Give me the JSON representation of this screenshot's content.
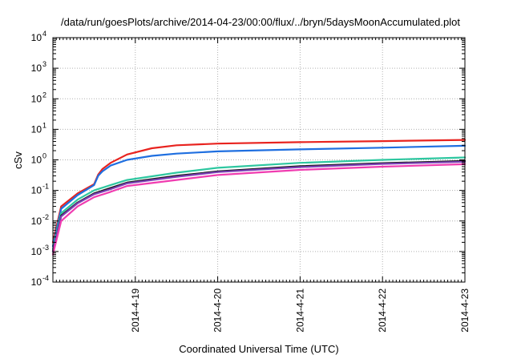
{
  "chart_data": {
    "type": "line",
    "title": "/data/run/goesPlots/archive/2014-04-23/00:00/flux/../bryn/5daysMoonAccumulated.plot",
    "xlabel": "Coordinated Universal Time (UTC)",
    "ylabel": "cSv",
    "yscale": "log",
    "ylim": [
      0.0001,
      10000
    ],
    "xlim": [
      "2014-04-18 00:00",
      "2014-04-23 00:00"
    ],
    "x_ticks": [
      "2014-4-19",
      "2014-4-20",
      "2014-4-21",
      "2014-4-22",
      "2014-4-23"
    ],
    "y_ticks": [
      {
        "base": "10",
        "exp": "-4"
      },
      {
        "base": "10",
        "exp": "-3"
      },
      {
        "base": "10",
        "exp": "-2"
      },
      {
        "base": "10",
        "exp": "-1"
      },
      {
        "base": "10",
        "exp": "0"
      },
      {
        "base": "10",
        "exp": "1"
      },
      {
        "base": "10",
        "exp": "2"
      },
      {
        "base": "10",
        "exp": "3"
      },
      {
        "base": "10",
        "exp": "4"
      }
    ],
    "grid": true,
    "series": [
      {
        "color": "#e8231f",
        "x": [
          "2014-04-18 00:00",
          "2014-04-18 02:24",
          "2014-04-18 07:12",
          "2014-04-18 12:00",
          "2014-04-18 13:12",
          "2014-04-18 14:24",
          "2014-04-18 16:48",
          "2014-04-18 21:36",
          "2014-04-19 04:48",
          "2014-04-19 12:00",
          "2014-04-20 00:00",
          "2014-04-21 00:00",
          "2014-04-22 00:00",
          "2014-04-23 00:00"
        ],
        "values": [
          0.002,
          0.03,
          0.08,
          0.16,
          0.33,
          0.5,
          0.8,
          1.5,
          2.4,
          3.0,
          3.4,
          3.8,
          4.1,
          4.5
        ]
      },
      {
        "color": "#1f6fe0",
        "x": [
          "2014-04-18 00:00",
          "2014-04-18 02:24",
          "2014-04-18 07:12",
          "2014-04-18 12:00",
          "2014-04-18 13:12",
          "2014-04-18 14:24",
          "2014-04-18 16:48",
          "2014-04-18 21:36",
          "2014-04-19 04:48",
          "2014-04-19 12:00",
          "2014-04-20 00:00",
          "2014-04-21 00:00",
          "2014-04-22 00:00",
          "2014-04-23 00:00"
        ],
        "values": [
          0.0015,
          0.025,
          0.07,
          0.15,
          0.3,
          0.42,
          0.65,
          1.0,
          1.35,
          1.6,
          1.9,
          2.2,
          2.5,
          2.9
        ]
      },
      {
        "color": "#2ec7a0",
        "x": [
          "2014-04-18 00:00",
          "2014-04-18 02:24",
          "2014-04-18 07:12",
          "2014-04-18 12:00",
          "2014-04-18 16:48",
          "2014-04-18 21:36",
          "2014-04-19 12:00",
          "2014-04-20 00:00",
          "2014-04-21 00:00",
          "2014-04-22 00:00",
          "2014-04-23 00:00"
        ],
        "values": [
          0.0012,
          0.018,
          0.05,
          0.1,
          0.15,
          0.22,
          0.38,
          0.55,
          0.8,
          1.0,
          1.2
        ]
      },
      {
        "color": "#1a1a1a",
        "x": [
          "2014-04-18 00:00",
          "2014-04-18 02:24",
          "2014-04-18 07:12",
          "2014-04-18 12:00",
          "2014-04-18 16:48",
          "2014-04-18 21:36",
          "2014-04-19 12:00",
          "2014-04-20 00:00",
          "2014-04-21 00:00",
          "2014-04-22 00:00",
          "2014-04-23 00:00"
        ],
        "values": [
          0.001,
          0.015,
          0.04,
          0.08,
          0.12,
          0.18,
          0.3,
          0.42,
          0.62,
          0.78,
          0.92
        ]
      },
      {
        "color": "#7a3fb5",
        "x": [
          "2014-04-18 00:00",
          "2014-04-18 02:24",
          "2014-04-18 07:12",
          "2014-04-18 12:00",
          "2014-04-18 16:48",
          "2014-04-18 21:36",
          "2014-04-19 12:00",
          "2014-04-20 00:00",
          "2014-04-21 00:00",
          "2014-04-22 00:00",
          "2014-04-23 00:00"
        ],
        "values": [
          0.001,
          0.014,
          0.038,
          0.075,
          0.11,
          0.17,
          0.28,
          0.4,
          0.58,
          0.74,
          0.87
        ]
      },
      {
        "color": "#f03cb0",
        "x": [
          "2014-04-18 00:00",
          "2014-04-18 02:24",
          "2014-04-18 07:12",
          "2014-04-18 12:00",
          "2014-04-18 16:48",
          "2014-04-18 21:36",
          "2014-04-19 12:00",
          "2014-04-20 00:00",
          "2014-04-21 00:00",
          "2014-04-22 00:00",
          "2014-04-23 00:00"
        ],
        "values": [
          0.0008,
          0.01,
          0.03,
          0.06,
          0.09,
          0.14,
          0.22,
          0.32,
          0.47,
          0.6,
          0.72
        ]
      }
    ]
  }
}
